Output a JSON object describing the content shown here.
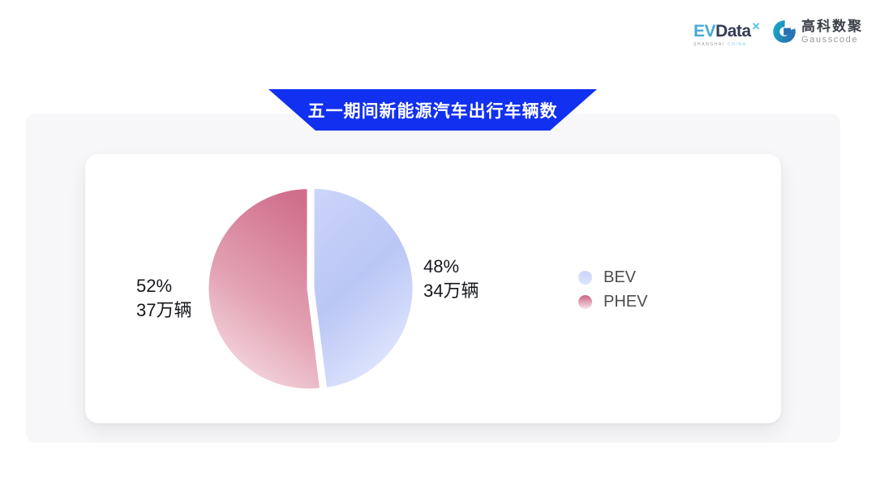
{
  "header": {
    "evdata": {
      "ev": "EV",
      "name": "Data",
      "mark": "✕",
      "subtitle_left": "SHANGHAI",
      "subtitle_right": "CHINA"
    },
    "gausscode": {
      "cn": "高科数聚",
      "en": "Gausscode"
    }
  },
  "banner": {
    "title": "五一期间新能源汽车出行车辆数",
    "color": "#1230f0",
    "text_color": "#ffffff"
  },
  "chart_data": {
    "type": "pie",
    "title": "五一期间新能源汽车出行车辆数",
    "unit": "万辆",
    "slices": [
      {
        "id": "bev",
        "name": "BEV",
        "percent": 48,
        "vehicles_wan": 34,
        "percent_label": "48%",
        "value_label": "34万辆"
      },
      {
        "id": "phev",
        "name": "PHEV",
        "percent": 52,
        "vehicles_wan": 37,
        "percent_label": "52%",
        "value_label": "37万辆"
      }
    ],
    "colors": {
      "bev": [
        "#ccd5f9",
        "#bac6f5",
        "#dde4fc"
      ],
      "phev": [
        "#d06f8b",
        "#e3a2b4",
        "#f6dfe5"
      ]
    },
    "legend_position": "right",
    "start_angle_deg": -90,
    "direction": "clockwise"
  }
}
